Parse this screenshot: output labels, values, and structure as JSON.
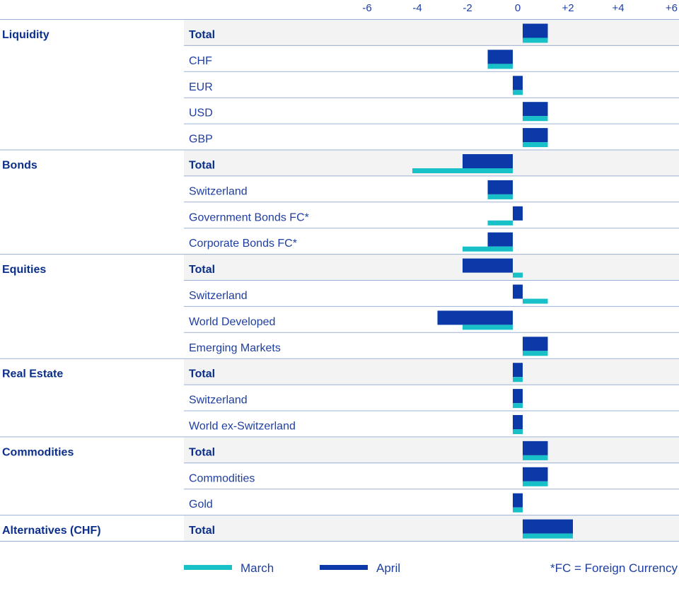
{
  "chart_data": {
    "type": "bar",
    "orientation": "horizontal",
    "xlim": [
      -6,
      6
    ],
    "ticks": [
      {
        "value": -6,
        "label": "-6"
      },
      {
        "value": -4,
        "label": "-4"
      },
      {
        "value": -2,
        "label": "-2"
      },
      {
        "value": 0,
        "label": "0"
      },
      {
        "value": 2,
        "label": "+2"
      },
      {
        "value": 4,
        "label": "+4"
      },
      {
        "value": 6,
        "label": "+6"
      }
    ],
    "series": [
      {
        "name": "March",
        "color": "#17c1c7"
      },
      {
        "name": "April",
        "color": "#0b3aa8"
      }
    ],
    "groups": [
      {
        "name": "Liquidity",
        "rows": [
          {
            "label": "Total",
            "bold": true,
            "march": 1,
            "april": 1
          },
          {
            "label": "CHF",
            "bold": false,
            "march": -1,
            "april": -1
          },
          {
            "label": "EUR",
            "bold": false,
            "march": 0,
            "april": 0
          },
          {
            "label": "USD",
            "bold": false,
            "march": 1,
            "april": 1
          },
          {
            "label": "GBP",
            "bold": false,
            "march": 1,
            "april": 1
          }
        ]
      },
      {
        "name": "Bonds",
        "rows": [
          {
            "label": "Total",
            "bold": true,
            "march": -4,
            "april": -2
          },
          {
            "label": "Switzerland",
            "bold": false,
            "march": -1,
            "april": -1
          },
          {
            "label": "Government Bonds FC*",
            "bold": false,
            "march": -1,
            "april": 0
          },
          {
            "label": "Corporate Bonds FC*",
            "bold": false,
            "march": -2,
            "april": -1
          }
        ]
      },
      {
        "name": "Equities",
        "rows": [
          {
            "label": "Total",
            "bold": true,
            "march": 0,
            "april": -2
          },
          {
            "label": "Switzerland",
            "bold": false,
            "march": 1,
            "april": 0
          },
          {
            "label": "World Developed",
            "bold": false,
            "march": -2,
            "april": -3
          },
          {
            "label": "Emerging Markets",
            "bold": false,
            "march": 1,
            "april": 1
          }
        ]
      },
      {
        "name": "Real Estate",
        "rows": [
          {
            "label": "Total",
            "bold": true,
            "march": 0,
            "april": 0
          },
          {
            "label": "Switzerland",
            "bold": false,
            "march": 0,
            "april": 0
          },
          {
            "label": "World ex-Switzerland",
            "bold": false,
            "march": 0,
            "april": 0
          }
        ]
      },
      {
        "name": "Commodities",
        "rows": [
          {
            "label": "Total",
            "bold": true,
            "march": 1,
            "april": 1
          },
          {
            "label": "Commodities",
            "bold": false,
            "march": 1,
            "april": 1
          },
          {
            "label": "Gold",
            "bold": false,
            "march": 0,
            "april": 0
          }
        ]
      },
      {
        "name": "Alternatives (CHF)",
        "rows": [
          {
            "label": "Total",
            "bold": true,
            "march": 2,
            "april": 2
          }
        ]
      }
    ],
    "footnote": "*FC = Foreign Currency",
    "colors": {
      "row_highlight": "#f3f3f3",
      "rule": "#9bb0d6",
      "text": "#1f3fa0",
      "text_bold": "#0b2f8a"
    }
  }
}
